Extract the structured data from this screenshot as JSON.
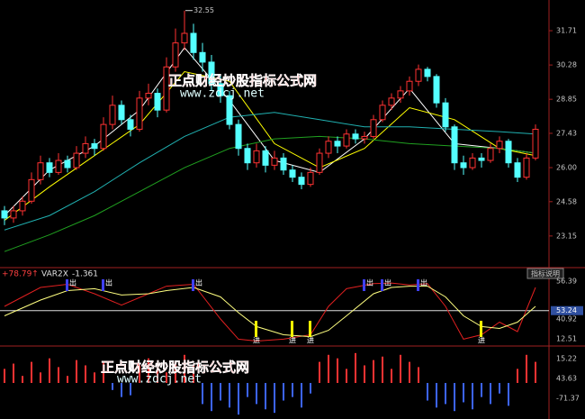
{
  "chart_data": [
    {
      "type": "candlestick",
      "open": [
        24.2,
        23.9,
        24.2,
        24.6,
        25.5,
        26.2,
        25.8,
        26.3,
        26.0,
        26.6,
        27.0,
        26.8,
        27.8,
        28.6,
        28.0,
        27.6,
        28.9,
        29.1,
        28.4,
        30.2,
        31.2,
        31.6,
        30.8,
        30.4,
        29.5,
        29.0,
        27.8,
        26.8,
        26.2,
        26.7,
        26.1,
        26.4,
        25.9,
        25.6,
        25.3,
        25.8,
        26.6,
        27.1,
        26.9,
        27.4,
        27.2,
        27.3,
        28.0,
        28.6,
        28.9,
        29.2,
        29.6,
        30.1,
        29.8,
        28.7,
        27.7,
        26.2,
        26.0,
        26.4,
        26.3,
        26.8,
        27.1,
        26.2,
        25.6,
        26.4
      ],
      "high": [
        24.4,
        24.4,
        24.8,
        25.8,
        26.5,
        26.4,
        26.6,
        26.5,
        26.9,
        27.3,
        27.2,
        28.1,
        29.0,
        28.8,
        28.2,
        29.2,
        29.5,
        29.3,
        30.6,
        31.8,
        32.55,
        32.0,
        31.2,
        30.7,
        29.9,
        29.2,
        28.0,
        27.0,
        27.0,
        26.9,
        26.7,
        26.6,
        26.1,
        25.8,
        26.0,
        26.8,
        27.3,
        27.3,
        27.6,
        27.6,
        27.5,
        28.2,
        28.8,
        29.1,
        29.4,
        29.8,
        30.3,
        30.2,
        29.9,
        28.9,
        27.8,
        26.5,
        26.6,
        26.6,
        27.0,
        27.3,
        27.2,
        26.4,
        26.6,
        27.8
      ],
      "low": [
        23.6,
        23.7,
        24.0,
        24.5,
        25.3,
        25.6,
        25.7,
        25.8,
        25.9,
        26.4,
        26.5,
        26.7,
        27.6,
        27.8,
        27.3,
        27.5,
        28.6,
        28.1,
        28.3,
        30.0,
        30.9,
        30.5,
        30.0,
        29.2,
        28.7,
        27.6,
        26.5,
        25.9,
        26.0,
        25.8,
        25.9,
        25.7,
        25.4,
        25.1,
        25.2,
        25.7,
        26.4,
        26.6,
        26.8,
        27.0,
        27.0,
        27.2,
        27.9,
        28.4,
        28.7,
        29.0,
        29.4,
        29.6,
        28.5,
        27.5,
        25.9,
        25.7,
        25.9,
        26.0,
        26.2,
        26.6,
        26.0,
        25.4,
        25.5,
        26.3
      ],
      "close": [
        23.9,
        24.2,
        24.6,
        25.5,
        26.2,
        25.8,
        26.3,
        26.0,
        26.6,
        27.0,
        26.8,
        27.8,
        28.6,
        28.0,
        27.6,
        28.9,
        29.1,
        28.4,
        30.2,
        31.2,
        31.6,
        30.8,
        30.4,
        29.5,
        29.0,
        27.8,
        26.8,
        26.2,
        26.7,
        26.1,
        26.4,
        25.9,
        25.6,
        25.3,
        25.8,
        26.6,
        27.1,
        26.9,
        27.4,
        27.2,
        27.3,
        28.0,
        28.6,
        28.9,
        29.2,
        29.6,
        30.1,
        29.8,
        28.7,
        27.7,
        26.2,
        26.0,
        26.4,
        26.3,
        26.8,
        27.1,
        26.2,
        25.6,
        26.4,
        27.6
      ],
      "up_color": "#ff3232",
      "down_color": "#54ffff",
      "ylim": [
        21.83,
        32.99
      ],
      "yticks": [
        31.71,
        30.28,
        28.85,
        27.43,
        {
          "value": 26,
          "label": "26.00"
        },
        24.58,
        23.15
      ],
      "lines": [
        {
          "color": "#ffffff",
          "x": [
            0,
            5,
            10,
            15,
            20,
            25,
            30,
            35,
            40,
            45,
            50,
            55,
            59
          ],
          "values": [
            24.0,
            25.9,
            26.9,
            28.4,
            31.0,
            28.8,
            26.3,
            25.8,
            27.2,
            29.3,
            27.0,
            26.8,
            26.6
          ]
        },
        {
          "color": "#ffff00",
          "x": [
            0,
            5,
            10,
            15,
            20,
            25,
            30,
            35,
            40,
            45,
            50,
            55,
            59
          ],
          "values": [
            23.8,
            25.2,
            26.5,
            27.8,
            30.0,
            29.6,
            27.0,
            26.0,
            26.8,
            28.5,
            28.0,
            26.8,
            26.5
          ]
        },
        {
          "color": "#20b0b0",
          "x": [
            0,
            5,
            10,
            15,
            20,
            25,
            30,
            35,
            40,
            45,
            50,
            55,
            59
          ],
          "values": [
            23.4,
            24.0,
            25.0,
            26.2,
            27.3,
            28.1,
            28.3,
            28.0,
            27.7,
            27.7,
            27.6,
            27.5,
            27.4
          ]
        },
        {
          "color": "#20a020",
          "x": [
            0,
            5,
            10,
            15,
            20,
            25,
            30,
            35,
            40,
            45,
            50,
            55,
            59
          ],
          "values": [
            22.5,
            23.2,
            24.0,
            25.0,
            26.0,
            26.8,
            27.2,
            27.3,
            27.2,
            27.0,
            26.9,
            26.8,
            26.6
          ]
        }
      ],
      "annotations": [
        {
          "x": 20,
          "value": 32.55
        }
      ],
      "watermark": {
        "title": "正点财经炒股指标公式网",
        "url": "www.zdcj.net"
      }
    },
    {
      "type": "line",
      "header": [
        "+78.79↑",
        "VAR2X",
        "-1.361"
      ],
      "button": "指标说明",
      "ylim": [
        0,
        100
      ],
      "reference_line": 53.24,
      "right_labels": [
        "56.39",
        "40.92",
        "12.51"
      ],
      "series": [
        {
          "color": "#e02020",
          "x": [
            0,
            4,
            7,
            10,
            13,
            16,
            18,
            21,
            24,
            26,
            28,
            31,
            34,
            36,
            38,
            41,
            43,
            45,
            47,
            49,
            51,
            53,
            55,
            57,
            59
          ],
          "values": [
            60,
            90,
            95,
            80,
            62,
            80,
            92,
            95,
            40,
            8,
            5,
            8,
            15,
            60,
            88,
            96,
            97,
            94,
            96,
            60,
            8,
            15,
            35,
            20,
            90
          ]
        },
        {
          "color": "#ffff80",
          "x": [
            0,
            4,
            7,
            10,
            13,
            16,
            18,
            21,
            24,
            26,
            28,
            31,
            34,
            36,
            38,
            41,
            43,
            45,
            47,
            49,
            51,
            53,
            55,
            57,
            59
          ],
          "values": [
            45,
            70,
            85,
            88,
            78,
            80,
            85,
            90,
            75,
            50,
            28,
            15,
            12,
            22,
            45,
            80,
            90,
            92,
            92,
            75,
            45,
            28,
            25,
            35,
            60
          ]
        }
      ],
      "sell_signals": {
        "x": [
          7,
          11,
          21,
          40,
          42,
          46
        ],
        "label": "出",
        "color": "#4040ff"
      },
      "buy_signals": {
        "x": [
          28,
          32,
          34,
          53
        ],
        "label": "进",
        "color": "#ffff00"
      }
    },
    {
      "type": "bar",
      "values": [
        40,
        55,
        20,
        60,
        30,
        70,
        45,
        20,
        65,
        50,
        30,
        60,
        -20,
        -40,
        -35,
        50,
        70,
        40,
        30,
        60,
        80,
        50,
        -60,
        -80,
        -50,
        -70,
        -90,
        -40,
        -60,
        -75,
        -85,
        -50,
        -40,
        -70,
        -30,
        60,
        80,
        70,
        40,
        85,
        50,
        65,
        75,
        40,
        80,
        60,
        45,
        -50,
        -70,
        -60,
        -80,
        -55,
        -75,
        -40,
        -60,
        -30,
        -65,
        40,
        80,
        60
      ],
      "ylim": [
        -100,
        100
      ],
      "pos_color": "#ff3232",
      "neg_color": "#3c64ff",
      "right_labels": [
        "15.22",
        "43.63",
        "-71.37"
      ],
      "watermark": {
        "title": "正点财经炒股指标公式网",
        "url": "www.zdcj.net"
      }
    }
  ]
}
